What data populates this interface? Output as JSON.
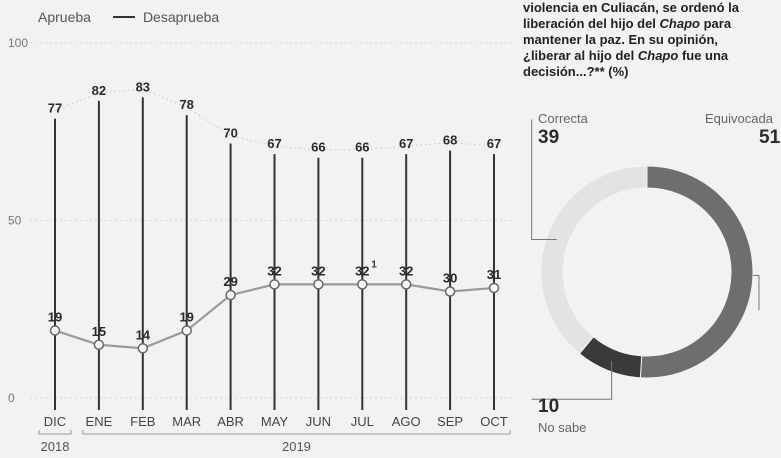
{
  "legend": {
    "approve_label": "Aprueba",
    "disapprove_label": "Desaprueba"
  },
  "question": {
    "line1": "violencia en Culiacán, se ordenó la",
    "line2_pre": "liberación del hijo del ",
    "line2_em": "Chapo",
    "line2_post": " para",
    "line3": "mantener la paz. En su opinión,",
    "line4_pre": "¿liberar al hijo del ",
    "line4_em": "Chapo",
    "line4_post": " fue una",
    "line5": "decisión...?** (%)"
  },
  "chart_data": [
    {
      "type": "line",
      "categories": [
        "DIC",
        "ENE",
        "FEB",
        "MAR",
        "ABR",
        "MAY",
        "JUN",
        "JUL",
        "AGO",
        "SEP",
        "OCT"
      ],
      "year_labels": [
        {
          "label": "2018",
          "from": "DIC",
          "to": "DIC"
        },
        {
          "label": "2019",
          "from": "ENE",
          "to": "OCT"
        }
      ],
      "series": [
        {
          "name": "Aprueba",
          "values": [
            19,
            15,
            14,
            19,
            29,
            32,
            32,
            32,
            32,
            30,
            31
          ],
          "color": "#555555",
          "style": "solid-markers"
        },
        {
          "name": "Desaprueba",
          "values": [
            77,
            82,
            83,
            78,
            70,
            67,
            66,
            66,
            67,
            68,
            67
          ],
          "color": "#333333",
          "style": "vertical-stems"
        }
      ],
      "annotations": [
        {
          "category": "JUL",
          "series": "Aprueba",
          "text": "1"
        }
      ],
      "yticks": [
        0,
        50,
        100
      ],
      "ylim": [
        0,
        100
      ],
      "grid": true
    },
    {
      "type": "pie",
      "style": "donut",
      "slices": [
        {
          "label": "Equivocada",
          "value": 51,
          "color": "#6e6e6e"
        },
        {
          "label": "No sabe",
          "value": 10,
          "color": "#3a3a3a"
        },
        {
          "label": "Correcta",
          "value": 39,
          "color": "#e4e3e1"
        }
      ]
    }
  ]
}
